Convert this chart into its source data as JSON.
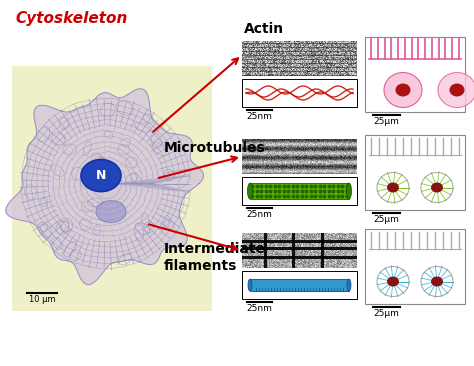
{
  "title": "Cytoskeleton",
  "title_color": "#cc0000",
  "title_fontsize": 11,
  "background_color": "#ffffff",
  "labels": {
    "actin": "Actin",
    "microtubules": "Microtubules",
    "intermediate": "Intermediate\nfilaments"
  },
  "scale_labels": {
    "nm": "25nm",
    "um": "25μm"
  },
  "scale_cell": "10 μm",
  "nucleus_label": "N",
  "arrow_color": "#cc0000",
  "actin_color": "#cc1100",
  "microtubule_color": "#5aaa00",
  "intermediate_color": "#3399cc",
  "cell_bg": "#f0f0c8",
  "cell_body_color": "#c8b4d0",
  "nucleus_color": "#2244bb"
}
